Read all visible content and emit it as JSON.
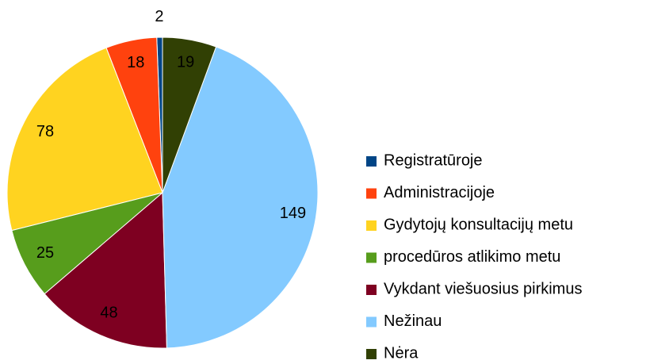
{
  "chart_data": {
    "type": "pie",
    "categories": [
      "Registratūroje",
      "Administracijoje",
      "Gydytojų konsultacijų metu",
      "procedūros atlikimo metu",
      "Vykdant viešuosius pirkimus",
      "Nežinau",
      "Nėra"
    ],
    "values": [
      2,
      18,
      78,
      25,
      48,
      149,
      19
    ],
    "colors": [
      "#004586",
      "#ff420e",
      "#ffd320",
      "#579d1c",
      "#7e0021",
      "#83caff",
      "#314004"
    ],
    "legend": "right"
  }
}
